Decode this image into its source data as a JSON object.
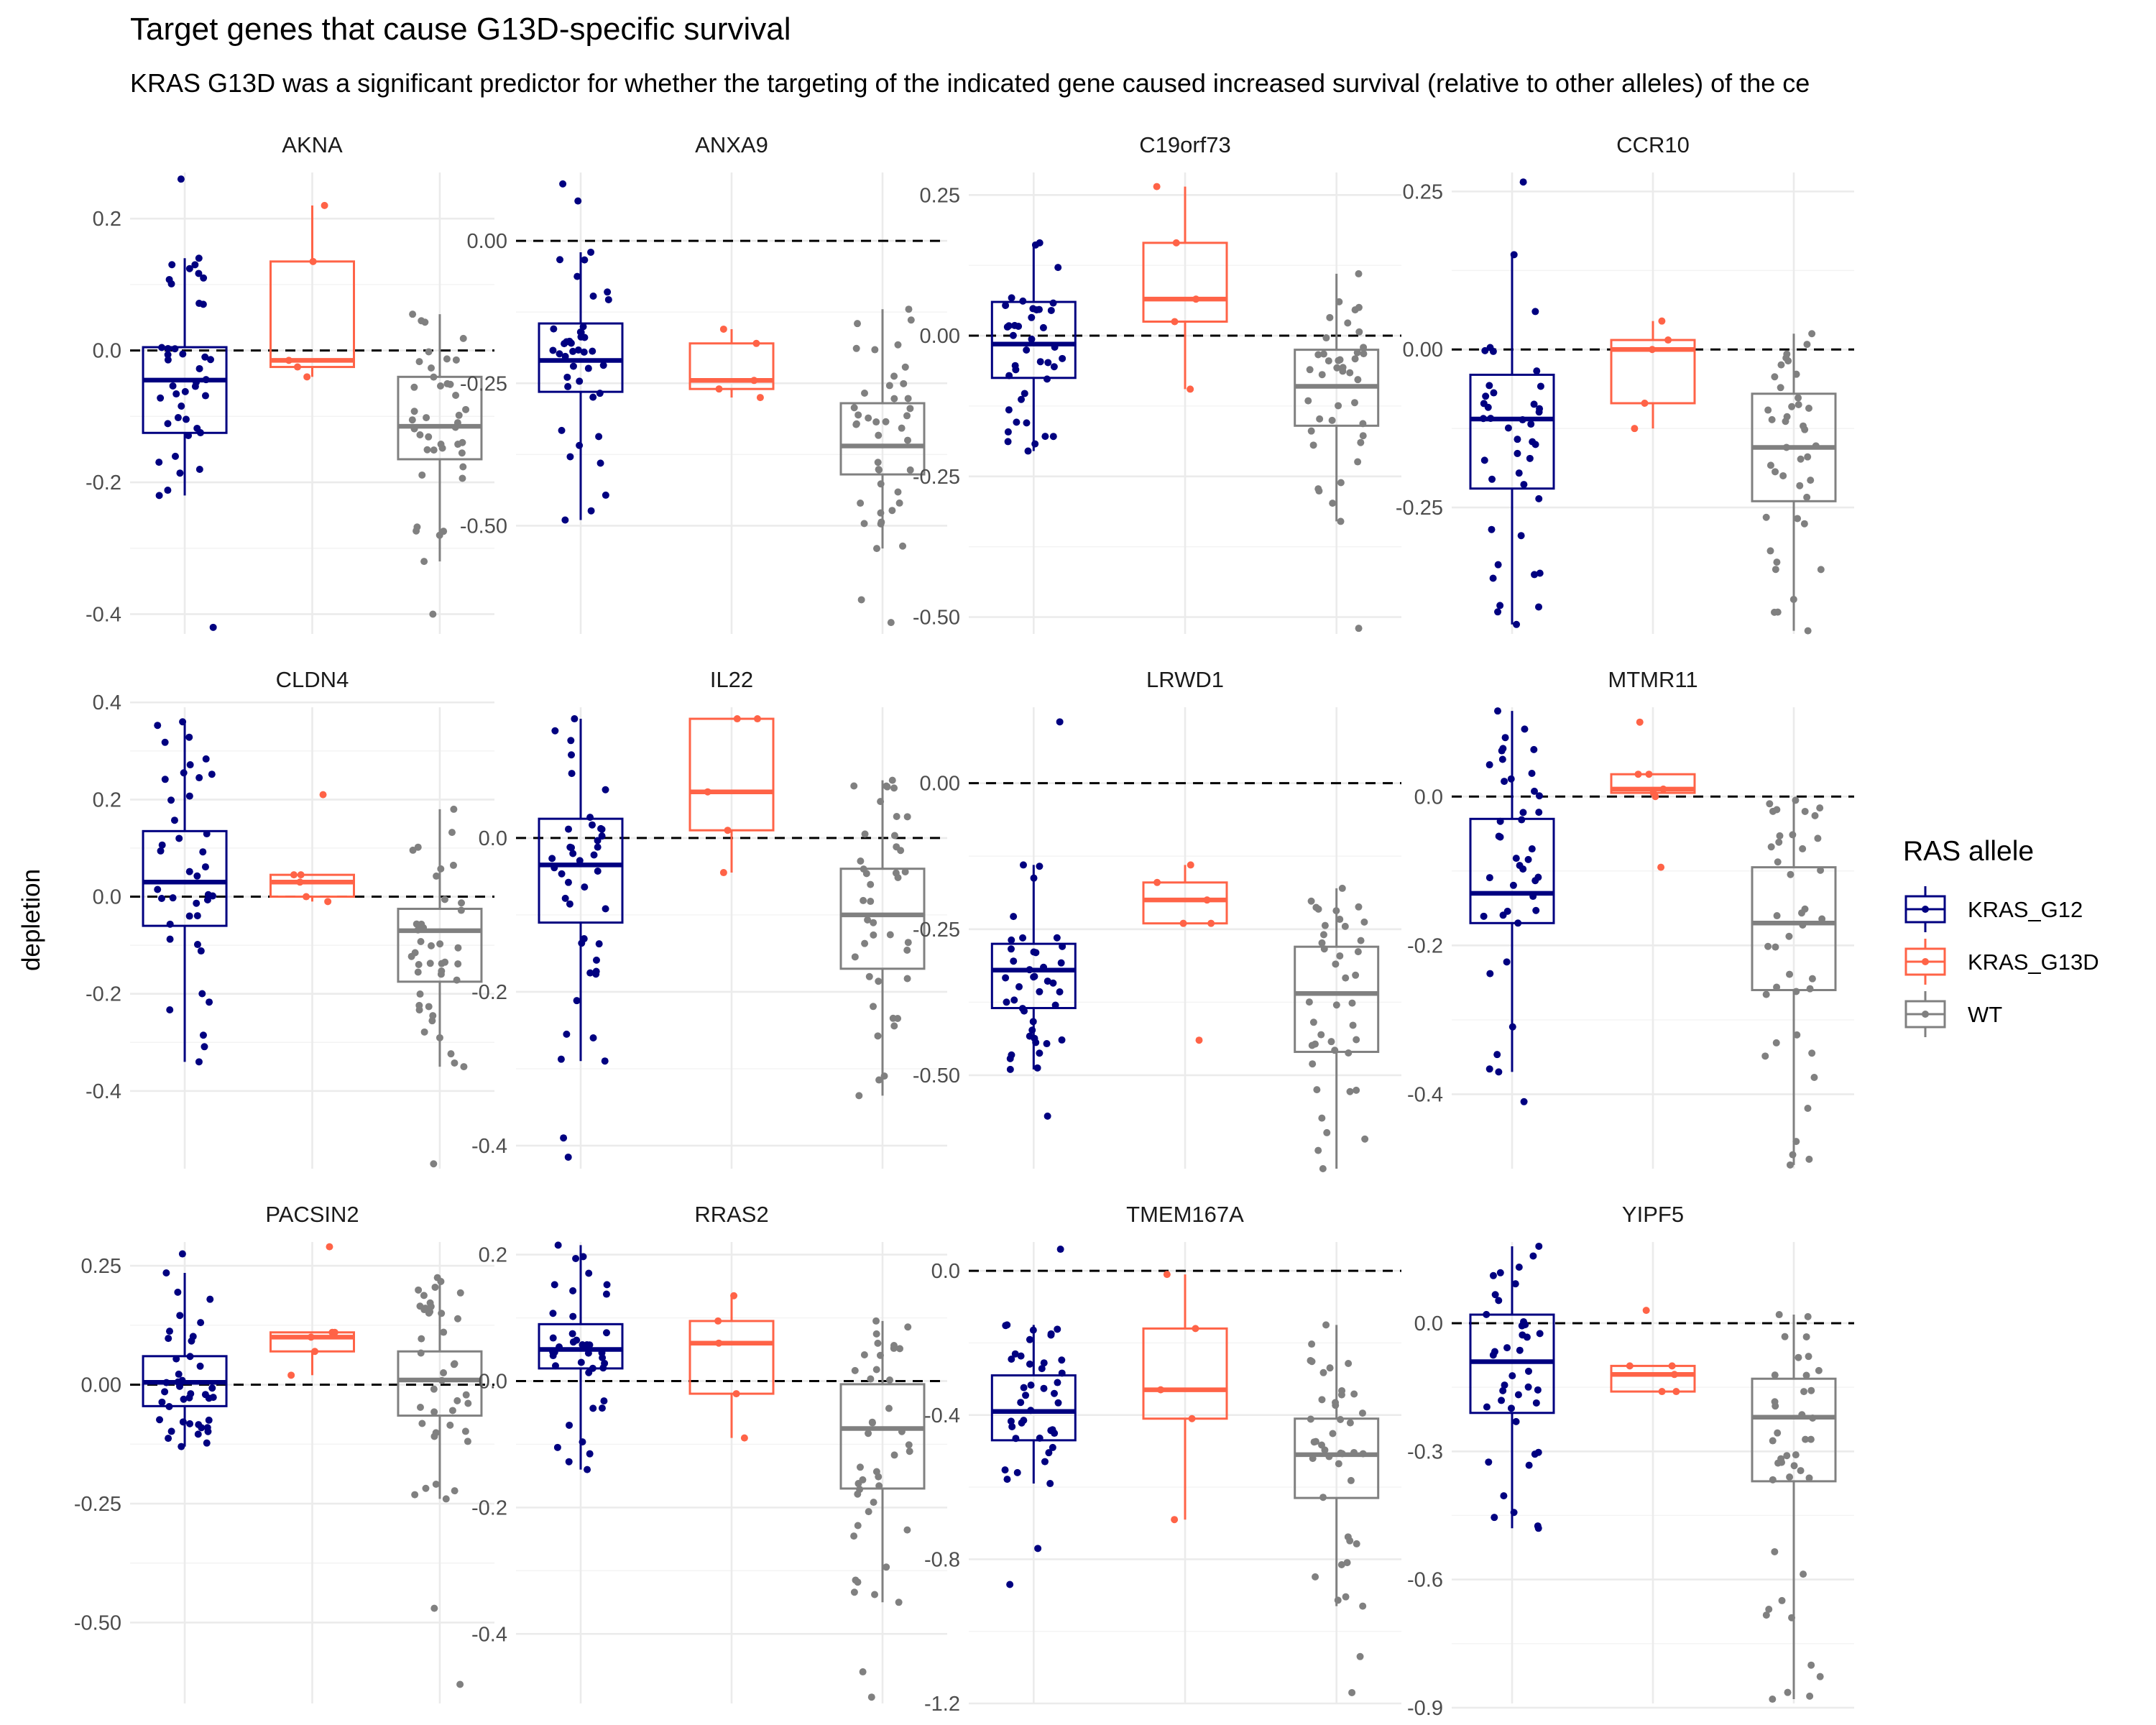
{
  "title": "Target genes that cause G13D-specific survival",
  "subtitle": "KRAS G13D was a significant predictor for whether the targeting of the indicated gene caused increased survival (relative to other alleles) of the ce",
  "ylabel": "depletion",
  "legend": {
    "title": "RAS allele",
    "items": [
      {
        "label": "KRAS_G12",
        "color": "#000080"
      },
      {
        "label": "KRAS_G13D",
        "color": "#FF6347"
      },
      {
        "label": "WT",
        "color": "#808080"
      }
    ]
  },
  "chart_data": {
    "type": "box",
    "groups": [
      "KRAS_G12",
      "KRAS_G13D",
      "WT"
    ],
    "reference_line": 0,
    "grid": true,
    "legend_position": "right",
    "panels": [
      {
        "gene": "AKNA",
        "ylim": [
          -0.43,
          0.27
        ],
        "ticks": [
          {
            "v": 0.2,
            "label": "0.2"
          },
          {
            "v": 0,
            "label": "0.0"
          },
          {
            "v": -0.2,
            "label": "-0.2"
          },
          {
            "v": -0.4,
            "label": "-0.4"
          }
        ],
        "boxes": [
          {
            "q1": -0.125,
            "median": -0.045,
            "q3": 0.005,
            "wmin": -0.22,
            "wmax": 0.14,
            "outliers": [
              0.26,
              -0.42
            ]
          },
          {
            "q1": -0.025,
            "median": -0.015,
            "q3": 0.135,
            "wmin": -0.04,
            "wmax": 0.22,
            "outliers": []
          },
          {
            "q1": -0.165,
            "median": -0.115,
            "q3": -0.04,
            "wmin": -0.32,
            "wmax": 0.055,
            "outliers": [
              -0.4
            ]
          }
        ]
      },
      {
        "gene": "ANXA9",
        "ylim": [
          -0.69,
          0.12
        ],
        "ticks": [
          {
            "v": 0,
            "label": "0.00"
          },
          {
            "v": -0.25,
            "label": "-0.25"
          },
          {
            "v": -0.5,
            "label": "-0.50"
          }
        ],
        "boxes": [
          {
            "q1": -0.265,
            "median": -0.21,
            "q3": -0.145,
            "wmin": -0.49,
            "wmax": -0.02,
            "outliers": [
              0.1,
              0.07
            ]
          },
          {
            "q1": -0.26,
            "median": -0.245,
            "q3": -0.18,
            "wmin": -0.275,
            "wmax": -0.155,
            "outliers": []
          },
          {
            "q1": -0.41,
            "median": -0.36,
            "q3": -0.285,
            "wmin": -0.54,
            "wmax": -0.12,
            "outliers": [
              -0.63,
              -0.67
            ]
          }
        ]
      },
      {
        "gene": "C19orf73",
        "ylim": [
          -0.53,
          0.29
        ],
        "ticks": [
          {
            "v": 0.25,
            "label": "0.25"
          },
          {
            "v": 0,
            "label": "0.00"
          },
          {
            "v": -0.25,
            "label": "-0.25"
          },
          {
            "v": -0.5,
            "label": "-0.50"
          }
        ],
        "boxes": [
          {
            "q1": -0.075,
            "median": -0.015,
            "q3": 0.06,
            "wmin": -0.205,
            "wmax": 0.165,
            "outliers": []
          },
          {
            "q1": 0.025,
            "median": 0.065,
            "q3": 0.165,
            "wmin": -0.095,
            "wmax": 0.265,
            "outliers": []
          },
          {
            "q1": -0.16,
            "median": -0.09,
            "q3": -0.025,
            "wmin": -0.33,
            "wmax": 0.11,
            "outliers": [
              -0.52
            ]
          }
        ]
      },
      {
        "gene": "CCR10",
        "ylim": [
          -0.45,
          0.28
        ],
        "ticks": [
          {
            "v": 0.25,
            "label": "0.25"
          },
          {
            "v": 0,
            "label": "0.00"
          },
          {
            "v": -0.25,
            "label": "-0.25"
          }
        ],
        "boxes": [
          {
            "q1": -0.22,
            "median": -0.11,
            "q3": -0.04,
            "wmin": -0.435,
            "wmax": 0.15,
            "outliers": [
              0.265
            ]
          },
          {
            "q1": -0.085,
            "median": 0.0,
            "q3": 0.015,
            "wmin": -0.125,
            "wmax": 0.045,
            "outliers": []
          },
          {
            "q1": -0.24,
            "median": -0.155,
            "q3": -0.07,
            "wmin": -0.445,
            "wmax": 0.025,
            "outliers": []
          }
        ]
      },
      {
        "gene": "CLDN4",
        "ylim": [
          -0.56,
          0.39
        ],
        "ticks": [
          {
            "v": 0.4,
            "label": "0.4"
          },
          {
            "v": 0.2,
            "label": "0.2"
          },
          {
            "v": 0,
            "label": "0.0"
          },
          {
            "v": -0.2,
            "label": "-0.2"
          },
          {
            "v": -0.4,
            "label": "-0.4"
          }
        ],
        "boxes": [
          {
            "q1": -0.06,
            "median": 0.03,
            "q3": 0.135,
            "wmin": -0.34,
            "wmax": 0.36,
            "outliers": []
          },
          {
            "q1": 0.0,
            "median": 0.03,
            "q3": 0.045,
            "wmin": -0.01,
            "wmax": 0.045,
            "outliers": [
              0.21
            ]
          },
          {
            "q1": -0.175,
            "median": -0.07,
            "q3": -0.025,
            "wmin": -0.35,
            "wmax": 0.18,
            "outliers": [
              -0.55
            ]
          }
        ]
      },
      {
        "gene": "IL22",
        "ylim": [
          -0.43,
          0.17
        ],
        "ticks": [
          {
            "v": 0,
            "label": "0.0"
          },
          {
            "v": -0.2,
            "label": "-0.2"
          },
          {
            "v": -0.4,
            "label": "-0.4"
          }
        ],
        "boxes": [
          {
            "q1": -0.11,
            "median": -0.035,
            "q3": 0.025,
            "wmin": -0.29,
            "wmax": 0.155,
            "outliers": [
              -0.39,
              -0.415
            ]
          },
          {
            "q1": 0.01,
            "median": 0.06,
            "q3": 0.155,
            "wmin": -0.045,
            "wmax": 0.155,
            "outliers": []
          },
          {
            "q1": -0.17,
            "median": -0.1,
            "q3": -0.04,
            "wmin": -0.335,
            "wmax": 0.075,
            "outliers": []
          }
        ]
      },
      {
        "gene": "LRWD1",
        "ylim": [
          -0.66,
          0.13
        ],
        "ticks": [
          {
            "v": 0,
            "label": "0.00"
          },
          {
            "v": -0.25,
            "label": "-0.25"
          },
          {
            "v": -0.5,
            "label": "-0.50"
          }
        ],
        "boxes": [
          {
            "q1": -0.385,
            "median": -0.32,
            "q3": -0.275,
            "wmin": -0.49,
            "wmax": -0.14,
            "outliers": [
              0.105,
              -0.57
            ]
          },
          {
            "q1": -0.24,
            "median": -0.2,
            "q3": -0.17,
            "wmin": -0.24,
            "wmax": -0.14,
            "outliers": [
              -0.44
            ]
          },
          {
            "q1": -0.46,
            "median": -0.36,
            "q3": -0.28,
            "wmin": -0.66,
            "wmax": -0.18,
            "outliers": []
          }
        ]
      },
      {
        "gene": "MTMR11",
        "ylim": [
          -0.5,
          0.12
        ],
        "ticks": [
          {
            "v": 0,
            "label": "0.0"
          },
          {
            "v": -0.2,
            "label": "-0.2"
          },
          {
            "v": -0.4,
            "label": "-0.4"
          }
        ],
        "boxes": [
          {
            "q1": -0.17,
            "median": -0.13,
            "q3": -0.03,
            "wmin": -0.37,
            "wmax": 0.115,
            "outliers": [
              -0.41
            ]
          },
          {
            "q1": 0.005,
            "median": 0.01,
            "q3": 0.03,
            "wmin": -0.0,
            "wmax": 0.03,
            "outliers": [
              0.1,
              -0.095
            ]
          },
          {
            "q1": -0.26,
            "median": -0.17,
            "q3": -0.095,
            "wmin": -0.495,
            "wmax": -0.005,
            "outliers": []
          }
        ]
      },
      {
        "gene": "PACSIN2",
        "ylim": [
          -0.67,
          0.3
        ],
        "ticks": [
          {
            "v": 0.25,
            "label": "0.25"
          },
          {
            "v": 0,
            "label": "0.00"
          },
          {
            "v": -0.25,
            "label": "-0.25"
          },
          {
            "v": -0.5,
            "label": "-0.50"
          }
        ],
        "boxes": [
          {
            "q1": -0.045,
            "median": 0.005,
            "q3": 0.06,
            "wmin": -0.13,
            "wmax": 0.235,
            "outliers": [
              0.275
            ]
          },
          {
            "q1": 0.07,
            "median": 0.1,
            "q3": 0.11,
            "wmin": 0.02,
            "wmax": 0.11,
            "outliers": [
              0.29
            ]
          },
          {
            "q1": -0.065,
            "median": 0.01,
            "q3": 0.07,
            "wmin": -0.24,
            "wmax": 0.225,
            "outliers": [
              -0.47,
              -0.63
            ]
          }
        ]
      },
      {
        "gene": "RRAS2",
        "ylim": [
          -0.51,
          0.22
        ],
        "ticks": [
          {
            "v": 0.2,
            "label": "0.2"
          },
          {
            "v": 0,
            "label": "0.0"
          },
          {
            "v": -0.2,
            "label": "-0.2"
          },
          {
            "v": -0.4,
            "label": "-0.4"
          }
        ],
        "boxes": [
          {
            "q1": 0.02,
            "median": 0.05,
            "q3": 0.09,
            "wmin": -0.14,
            "wmax": 0.215,
            "outliers": []
          },
          {
            "q1": -0.02,
            "median": 0.06,
            "q3": 0.095,
            "wmin": -0.09,
            "wmax": 0.135,
            "outliers": []
          },
          {
            "q1": -0.17,
            "median": -0.075,
            "q3": -0.005,
            "wmin": -0.35,
            "wmax": 0.095,
            "outliers": [
              -0.46,
              -0.5
            ]
          }
        ]
      },
      {
        "gene": "TMEM167A",
        "ylim": [
          -1.2,
          0.08
        ],
        "ticks": [
          {
            "v": 0,
            "label": "0.0"
          },
          {
            "v": -0.4,
            "label": "-0.4"
          },
          {
            "v": -0.8,
            "label": "-0.8"
          },
          {
            "v": -1.2,
            "label": "-1.2"
          }
        ],
        "boxes": [
          {
            "q1": -0.47,
            "median": -0.39,
            "q3": -0.29,
            "wmin": -0.59,
            "wmax": -0.15,
            "outliers": [
              0.06,
              -0.77,
              -0.87
            ]
          },
          {
            "q1": -0.41,
            "median": -0.33,
            "q3": -0.16,
            "wmin": -0.69,
            "wmax": -0.01,
            "outliers": []
          },
          {
            "q1": -0.63,
            "median": -0.51,
            "q3": -0.41,
            "wmin": -0.93,
            "wmax": -0.15,
            "outliers": [
              -1.07,
              -1.17
            ]
          }
        ]
      },
      {
        "gene": "YIPF5",
        "ylim": [
          -0.89,
          0.19
        ],
        "ticks": [
          {
            "v": 0,
            "label": "0.0"
          },
          {
            "v": -0.3,
            "label": "-0.3"
          },
          {
            "v": -0.6,
            "label": "-0.6"
          },
          {
            "v": -0.9,
            "label": "-0.9"
          }
        ],
        "boxes": [
          {
            "q1": -0.21,
            "median": -0.09,
            "q3": 0.02,
            "wmin": -0.48,
            "wmax": 0.18,
            "outliers": []
          },
          {
            "q1": -0.16,
            "median": -0.12,
            "q3": -0.1,
            "wmin": -0.16,
            "wmax": -0.1,
            "outliers": [
              0.03
            ]
          },
          {
            "q1": -0.37,
            "median": -0.22,
            "q3": -0.13,
            "wmin": -0.88,
            "wmax": 0.02,
            "outliers": []
          }
        ]
      }
    ]
  }
}
